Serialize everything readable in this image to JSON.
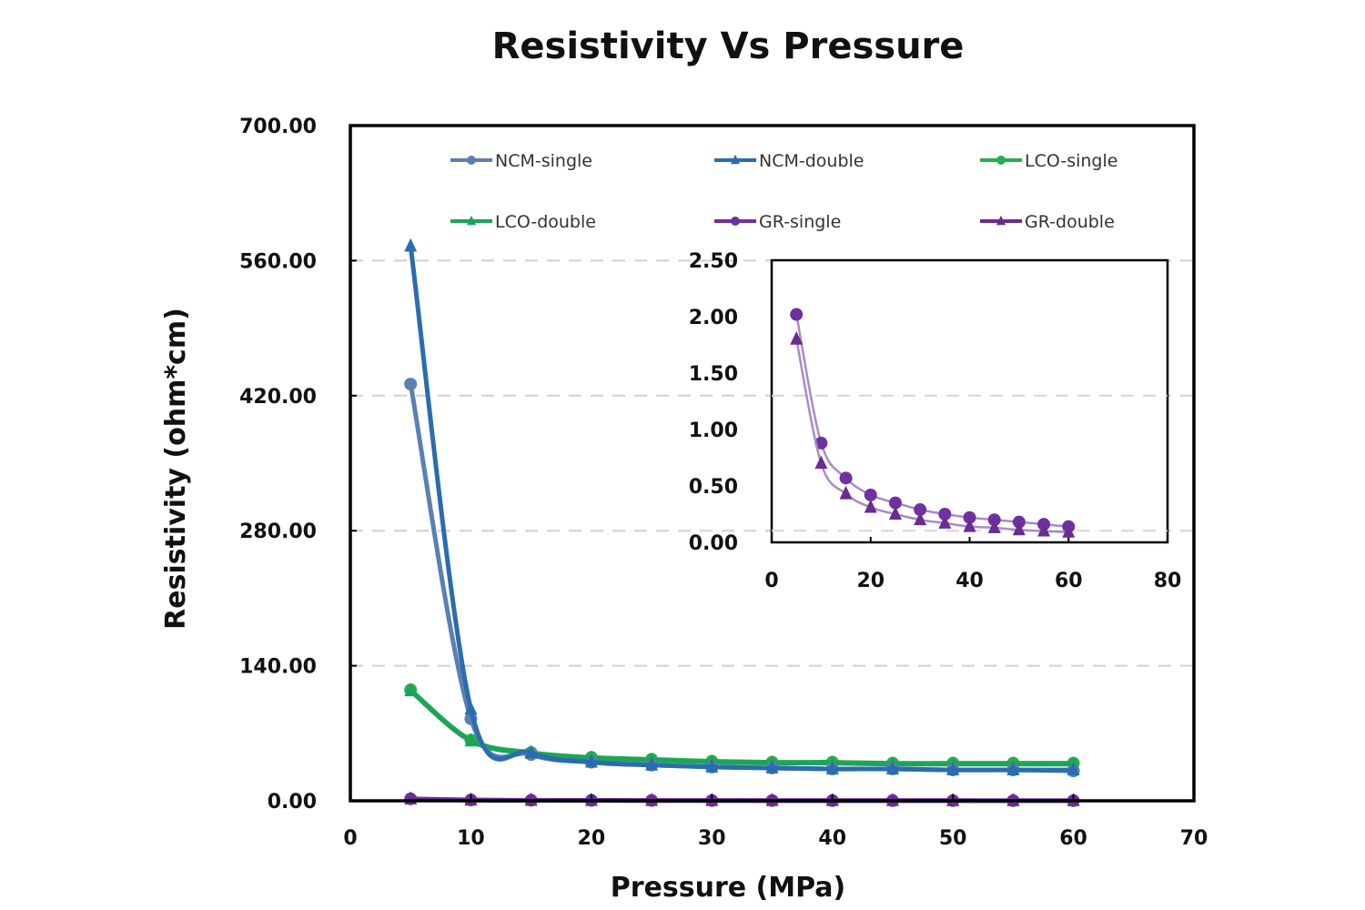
{
  "chart_data": [
    {
      "id": "main",
      "type": "line",
      "title": "Resistivity Vs Pressure",
      "xlabel": "Pressure  (MPa)",
      "ylabel": "Resistivity  (ohm*cm)",
      "xlim": [
        0,
        70
      ],
      "ylim": [
        0,
        700
      ],
      "xticks": [
        0,
        10,
        20,
        30,
        40,
        50,
        60,
        70
      ],
      "xtick_labels": [
        "0",
        "10",
        "20",
        "30",
        "40",
        "50",
        "60",
        "70"
      ],
      "yticks": [
        0,
        140,
        280,
        420,
        560,
        700
      ],
      "ytick_labels": [
        "0.00",
        "140.00",
        "280.00",
        "420.00",
        "560.00",
        "700.00"
      ],
      "grid": "horizontal dashed",
      "legend_position": "top (inside plot, 2 rows x 3 columns)",
      "x": [
        5,
        10,
        15,
        20,
        25,
        30,
        35,
        40,
        45,
        50,
        55,
        60
      ],
      "series": [
        {
          "name": "NCM-single",
          "marker": "circle",
          "color": "#5b7fb0",
          "values": [
            432,
            85,
            48,
            40,
            37,
            35,
            34,
            33,
            33,
            32,
            32,
            31
          ]
        },
        {
          "name": "NCM-double",
          "marker": "triangle",
          "color": "#2b6cb0",
          "values": [
            575,
            95,
            50,
            40,
            37,
            35,
            34,
            33,
            33,
            32,
            32,
            32
          ]
        },
        {
          "name": "LCO-single",
          "marker": "circle",
          "color": "#22b14c",
          "values": [
            115,
            63,
            50,
            45,
            43,
            41,
            40,
            40,
            39,
            39,
            39,
            39
          ]
        },
        {
          "name": "LCO-double",
          "marker": "triangle",
          "color": "#1fa35a",
          "values": [
            114,
            62,
            49,
            44,
            42,
            40,
            39,
            39,
            38,
            38,
            38,
            38
          ]
        },
        {
          "name": "GR-single",
          "marker": "circle",
          "color": "#7030a0",
          "values": [
            2.02,
            0.88,
            0.57,
            0.42,
            0.35,
            0.29,
            0.25,
            0.22,
            0.2,
            0.18,
            0.16,
            0.14
          ]
        },
        {
          "name": "GR-double",
          "marker": "triangle",
          "color": "#6a2c91",
          "values": [
            1.8,
            0.7,
            0.43,
            0.31,
            0.25,
            0.2,
            0.17,
            0.14,
            0.13,
            0.11,
            0.1,
            0.09
          ]
        }
      ]
    },
    {
      "id": "inset",
      "type": "line",
      "title": "",
      "xlabel": "",
      "ylabel": "",
      "xlim": [
        0,
        80
      ],
      "ylim": [
        0,
        2.5
      ],
      "xticks": [
        0,
        20,
        40,
        60,
        80
      ],
      "xtick_labels": [
        "0",
        "20",
        "40",
        "60",
        "80"
      ],
      "yticks": [
        0,
        0.5,
        1,
        1.5,
        2,
        2.5
      ],
      "ytick_labels": [
        "0.00",
        "0.50",
        "1.00",
        "1.50",
        "2.00",
        "2.50"
      ],
      "grid": "none",
      "x": [
        5,
        10,
        15,
        20,
        25,
        30,
        35,
        40,
        45,
        50,
        55,
        60
      ],
      "series": [
        {
          "name": "GR-single",
          "marker": "circle",
          "color": "#7030a0",
          "values": [
            2.02,
            0.88,
            0.57,
            0.42,
            0.35,
            0.29,
            0.25,
            0.22,
            0.2,
            0.18,
            0.16,
            0.14
          ]
        },
        {
          "name": "GR-double",
          "marker": "triangle",
          "color": "#6a2c91",
          "values": [
            1.8,
            0.7,
            0.43,
            0.31,
            0.25,
            0.2,
            0.17,
            0.14,
            0.13,
            0.11,
            0.1,
            0.09
          ]
        }
      ]
    }
  ]
}
